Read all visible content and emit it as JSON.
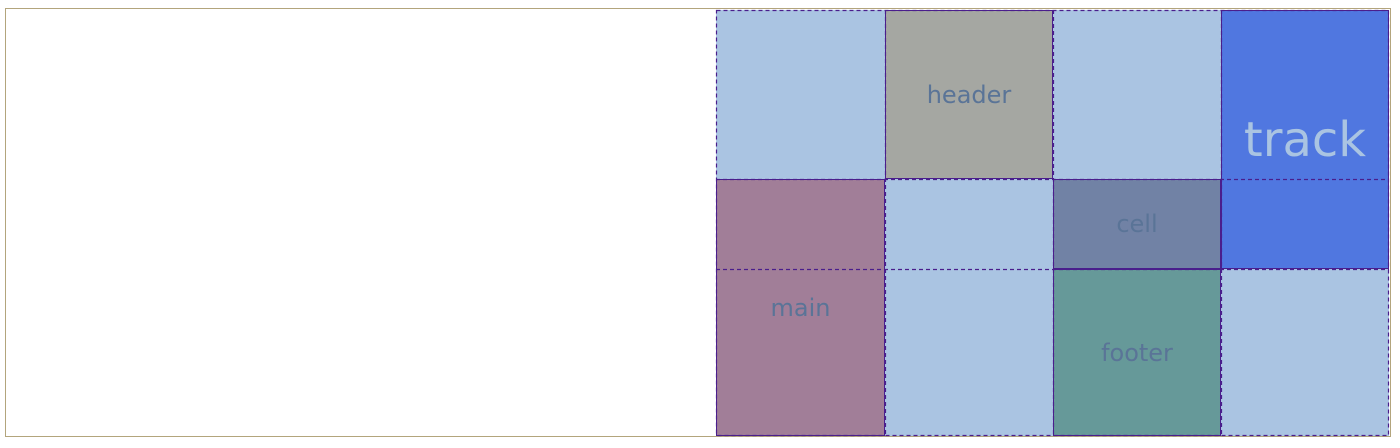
{
  "areas": [
    {
      "label": "header"
    },
    {
      "label": "track"
    },
    {
      "label": "cell"
    },
    {
      "label": "main"
    },
    {
      "label": "footer"
    }
  ]
}
